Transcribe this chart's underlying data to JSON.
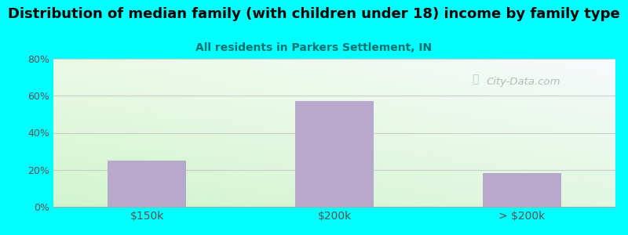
{
  "title": "Distribution of median family (with children under 18) income by family type",
  "subtitle": "All residents in Parkers Settlement, IN",
  "categories": [
    "$150k",
    "$200k",
    "> $200k"
  ],
  "values": [
    25,
    57,
    18
  ],
  "bar_color": "#b8a8cc",
  "title_fontsize": 13,
  "subtitle_fontsize": 10,
  "subtitle_color": "#007070",
  "title_color": "#000000",
  "background_color": "#00ffff",
  "ylim": [
    0,
    80
  ],
  "yticks": [
    0,
    20,
    40,
    60,
    80
  ],
  "ytick_labels": [
    "0%",
    "20%",
    "40%",
    "60%",
    "80%"
  ],
  "watermark": "City-Data.com",
  "grid_color": "#cccccc",
  "tick_color": "#555555"
}
